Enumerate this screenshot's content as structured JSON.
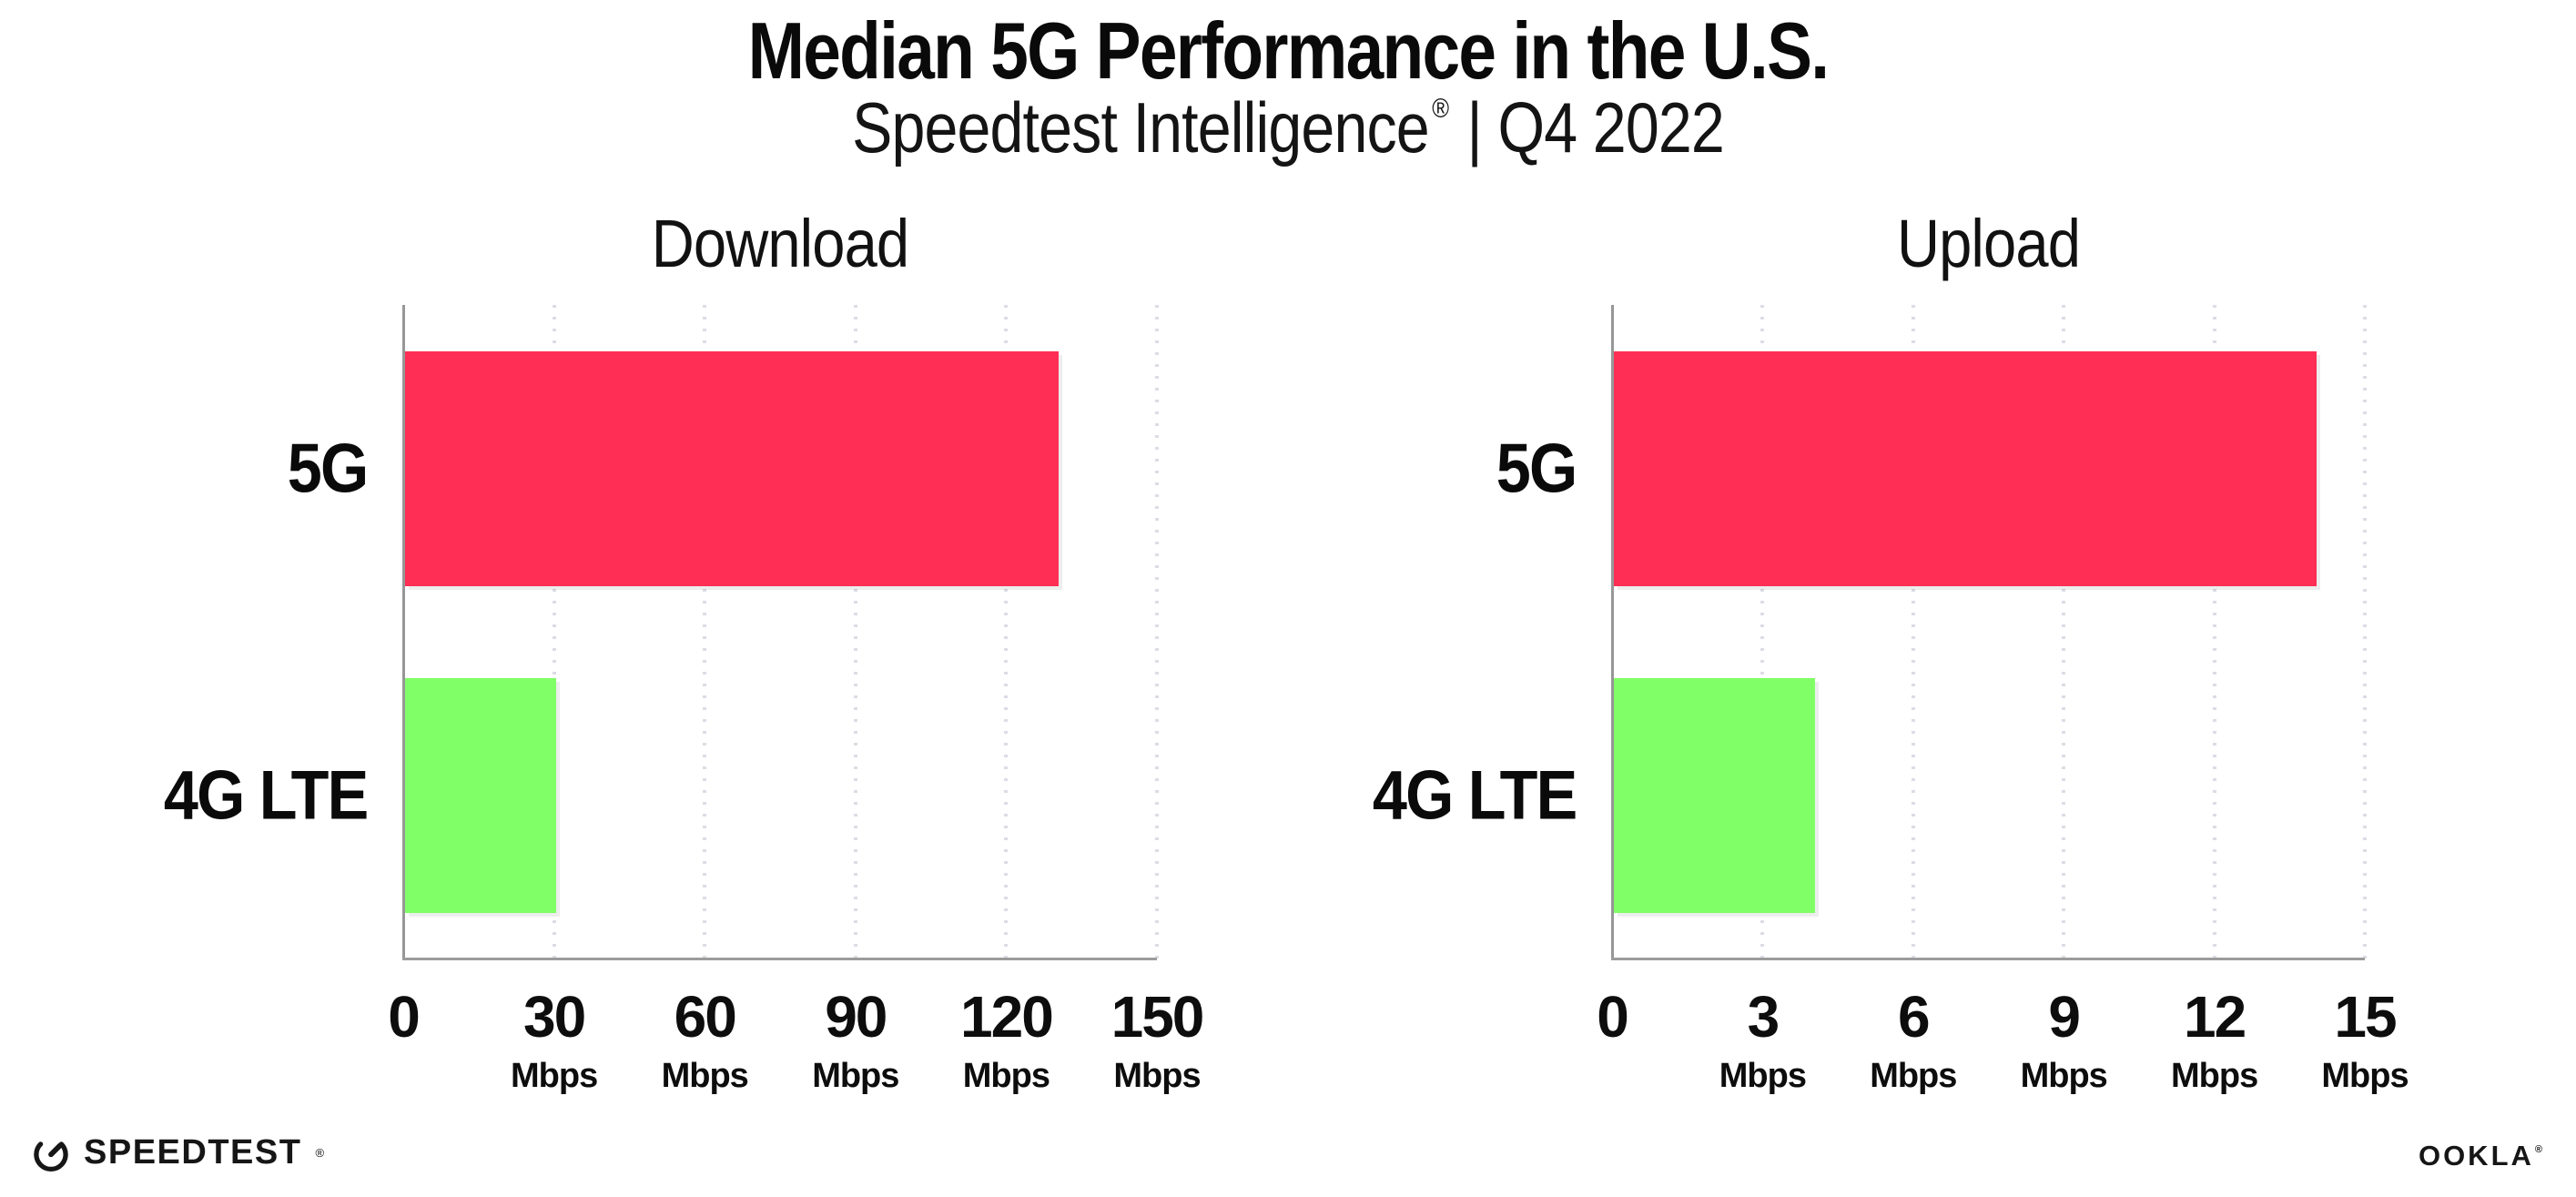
{
  "header": {
    "title": "Median 5G Performance in the U.S.",
    "subtitle_brand": "Speedtest Intelligence",
    "subtitle_registered_mark": "®",
    "subtitle_rest": "| Q4 2022"
  },
  "footer": {
    "speedtest_logo_text": "SPEEDTEST",
    "speedtest_registered_mark": "®",
    "speedometer_icon": "gauge-icon",
    "ookla_logo_text": "OOKLA",
    "ookla_registered_mark": "®"
  },
  "colors": {
    "bar_5g": "#ff2e54",
    "bar_4g_lte": "#80ff66",
    "axis": "#9c9c9c",
    "gridline_dots": "#dcdce6",
    "text": "#0d0d0d"
  },
  "chart_data": [
    {
      "type": "bar",
      "orientation": "horizontal",
      "title": "Download",
      "categories": [
        "5G",
        "4G LTE"
      ],
      "values": [
        130,
        30
      ],
      "unit": "Mbps",
      "xlim": [
        0,
        150
      ],
      "xticks": [
        0,
        30,
        60,
        90,
        120,
        150
      ],
      "bar_colors": [
        "#ff2e54",
        "#80ff66"
      ],
      "grid": "dotted-vertical",
      "legend": "none"
    },
    {
      "type": "bar",
      "orientation": "horizontal",
      "title": "Upload",
      "categories": [
        "5G",
        "4G LTE"
      ],
      "values": [
        14,
        4
      ],
      "unit": "Mbps",
      "xlim": [
        0,
        15
      ],
      "xticks": [
        0,
        3,
        6,
        9,
        12,
        15
      ],
      "bar_colors": [
        "#ff2e54",
        "#80ff66"
      ],
      "grid": "dotted-vertical",
      "legend": "none"
    }
  ]
}
